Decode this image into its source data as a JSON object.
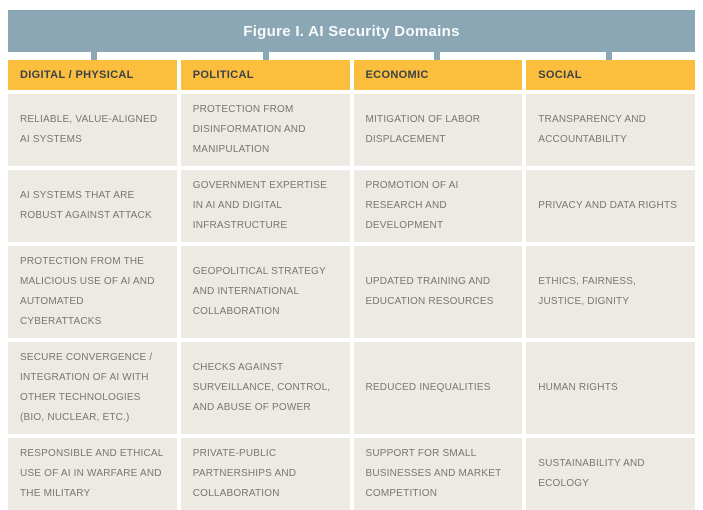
{
  "figure": {
    "title": "Figure I. AI Security Domains",
    "colors": {
      "header_bar": "#8BA6B4",
      "title_text": "#F8FAFB",
      "column_header_bg": "#FBBE3D",
      "column_header_text": "#3A424B",
      "cell_bg": "#EDE9E3",
      "cell_text": "#7C7670",
      "page_bg": "#FFFFFF"
    },
    "columns": [
      {
        "header": "DIGITAL / PHYSICAL",
        "cells": [
          "RELIABLE, VALUE-ALIGNED AI SYSTEMS",
          "AI SYSTEMS THAT ARE ROBUST AGAINST ATTACK",
          "PROTECTION FROM THE  MALICIOUS USE OF AI AND AUTOMATED CYBERATTACKS",
          "SECURE CONVERGENCE / INTEGRATION OF AI WITH OTHER TECHNOLOGIES (BIO, NUCLEAR, ETC.)",
          "RESPONSIBLE AND ETHICAL USE OF AI IN WARFARE AND THE MILITARY"
        ]
      },
      {
        "header": "POLITICAL",
        "cells": [
          "PROTECTION FROM DISINFORMATION AND MANIPULATION",
          "GOVERNMENT EXPERTISE IN AI AND DIGITAL INFRASTRUCTURE",
          "GEOPOLITICAL STRATEGY AND INTERNATIONAL COLLABORATION",
          "CHECKS AGAINST SURVEILLANCE, CONTROL, AND ABUSE OF POWER",
          "PRIVATE-PUBLIC PARTNERSHIPS AND COLLABORATION"
        ]
      },
      {
        "header": "ECONOMIC",
        "cells": [
          "MITIGATION OF LABOR DISPLACEMENT",
          "PROMOTION OF AI RESEARCH AND DEVELOPMENT",
          "UPDATED TRAINING AND EDUCATION RESOURCES",
          "REDUCED INEQUALITIES",
          "SUPPORT FOR SMALL BUSINESSES AND MARKET COMPETITION"
        ]
      },
      {
        "header": "SOCIAL",
        "cells": [
          "TRANSPARENCY AND ACCOUNTABILITY",
          "PRIVACY AND DATA RIGHTS",
          "ETHICS, FAIRNESS, JUSTICE, DIGNITY",
          "HUMAN RIGHTS",
          "SUSTAINABILITY AND ECOLOGY"
        ]
      }
    ]
  }
}
